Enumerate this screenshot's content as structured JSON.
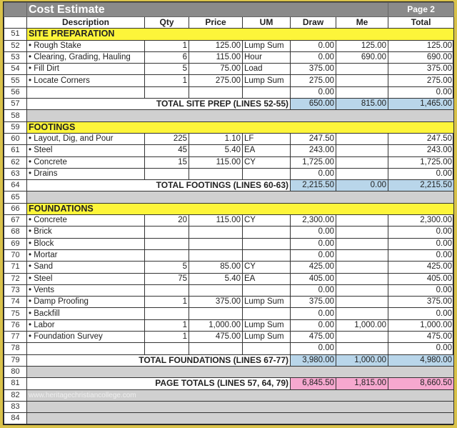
{
  "title": "Cost Estimate",
  "page": "Page 2",
  "columns": [
    "Description",
    "Qty",
    "Price",
    "UM",
    "Draw",
    "Me",
    "Total"
  ],
  "watermark": "www.heritagechristiancollege.com",
  "rows": [
    {
      "n": "51",
      "type": "section",
      "label": "SITE PREPARATION"
    },
    {
      "n": "52",
      "type": "item",
      "desc": "• Rough Stake",
      "qty": "1",
      "price": "125.00",
      "um": "Lump Sum",
      "draw": "0.00",
      "me": "125.00",
      "total": "125.00"
    },
    {
      "n": "53",
      "type": "item",
      "desc": "• Clearing, Grading, Hauling",
      "qty": "6",
      "price": "115.00",
      "um": "Hour",
      "draw": "0.00",
      "me": "690.00",
      "total": "690.00"
    },
    {
      "n": "54",
      "type": "item",
      "desc": "• Fill Dirt",
      "qty": "5",
      "price": "75.00",
      "um": "Load",
      "draw": "375.00",
      "me": "",
      "total": "375.00"
    },
    {
      "n": "55",
      "type": "item",
      "desc": "• Locate Corners",
      "qty": "1",
      "price": "275.00",
      "um": "Lump Sum",
      "draw": "275.00",
      "me": "",
      "total": "275.00"
    },
    {
      "n": "56",
      "type": "item",
      "desc": "",
      "qty": "",
      "price": "",
      "um": "",
      "draw": "0.00",
      "me": "",
      "total": "0.00"
    },
    {
      "n": "57",
      "type": "total",
      "label": "TOTAL SITE PREP (LINES 52-55)",
      "draw": "650.00",
      "me": "815.00",
      "total": "1,465.00",
      "color": "blue"
    },
    {
      "n": "58",
      "type": "gray"
    },
    {
      "n": "59",
      "type": "section",
      "label": "FOOTINGS"
    },
    {
      "n": "60",
      "type": "item",
      "desc": "• Layout, Dig, and Pour",
      "qty": "225",
      "price": "1.10",
      "um": "LF",
      "draw": "247.50",
      "me": "",
      "total": "247.50"
    },
    {
      "n": "61",
      "type": "item",
      "desc": "• Steel",
      "qty": "45",
      "price": "5.40",
      "um": "EA",
      "draw": "243.00",
      "me": "",
      "total": "243.00"
    },
    {
      "n": "62",
      "type": "item",
      "desc": "• Concrete",
      "qty": "15",
      "price": "115.00",
      "um": "CY",
      "draw": "1,725.00",
      "me": "",
      "total": "1,725.00"
    },
    {
      "n": "63",
      "type": "item",
      "desc": "• Drains",
      "qty": "",
      "price": "",
      "um": "",
      "draw": "0.00",
      "me": "",
      "total": "0.00"
    },
    {
      "n": "64",
      "type": "total",
      "label": "TOTAL FOOTINGS (LINES 60-63)",
      "draw": "2,215.50",
      "me": "0.00",
      "total": "2,215.50",
      "color": "blue"
    },
    {
      "n": "65",
      "type": "gray"
    },
    {
      "n": "66",
      "type": "section",
      "label": "FOUNDATIONS"
    },
    {
      "n": "67",
      "type": "item",
      "desc": "• Concrete",
      "qty": "20",
      "price": "115.00",
      "um": "CY",
      "draw": "2,300.00",
      "me": "",
      "total": "2,300.00"
    },
    {
      "n": "68",
      "type": "item",
      "desc": "• Brick",
      "qty": "",
      "price": "",
      "um": "",
      "draw": "0.00",
      "me": "",
      "total": "0.00"
    },
    {
      "n": "69",
      "type": "item",
      "desc": "• Block",
      "qty": "",
      "price": "",
      "um": "",
      "draw": "0.00",
      "me": "",
      "total": "0.00"
    },
    {
      "n": "70",
      "type": "item",
      "desc": "• Mortar",
      "qty": "",
      "price": "",
      "um": "",
      "draw": "0.00",
      "me": "",
      "total": "0.00"
    },
    {
      "n": "71",
      "type": "item",
      "desc": "• Sand",
      "qty": "5",
      "price": "85.00",
      "um": "CY",
      "draw": "425.00",
      "me": "",
      "total": "425.00"
    },
    {
      "n": "72",
      "type": "item",
      "desc": "• Steel",
      "qty": "75",
      "price": "5.40",
      "um": "EA",
      "draw": "405.00",
      "me": "",
      "total": "405.00"
    },
    {
      "n": "73",
      "type": "item",
      "desc": "• Vents",
      "qty": "",
      "price": "",
      "um": "",
      "draw": "0.00",
      "me": "",
      "total": "0.00"
    },
    {
      "n": "74",
      "type": "item",
      "desc": "• Damp  Proofing",
      "qty": "1",
      "price": "375.00",
      "um": "Lump Sum",
      "draw": "375.00",
      "me": "",
      "total": "375.00"
    },
    {
      "n": "75",
      "type": "item",
      "desc": "• Backfill",
      "qty": "",
      "price": "",
      "um": "",
      "draw": "0.00",
      "me": "",
      "total": "0.00"
    },
    {
      "n": "76",
      "type": "item",
      "desc": "• Labor",
      "qty": "1",
      "price": "1,000.00",
      "um": "Lump Sum",
      "draw": "0.00",
      "me": "1,000.00",
      "total": "1,000.00"
    },
    {
      "n": "77",
      "type": "item",
      "desc": "• Foundation Survey",
      "qty": "1",
      "price": "475.00",
      "um": "Lump Sum",
      "draw": "475.00",
      "me": "",
      "total": "475.00"
    },
    {
      "n": "78",
      "type": "item",
      "desc": "",
      "qty": "",
      "price": "",
      "um": "",
      "draw": "0.00",
      "me": "",
      "total": "0.00"
    },
    {
      "n": "79",
      "type": "total",
      "label": "TOTAL FOUNDATIONS (LINES 67-77)",
      "draw": "3,980.00",
      "me": "1,000.00",
      "total": "4,980.00",
      "color": "blue"
    },
    {
      "n": "80",
      "type": "gray"
    },
    {
      "n": "81",
      "type": "total",
      "label": "PAGE TOTALS (LINES 57, 64, 79)",
      "draw": "6,845.50",
      "me": "1,815.00",
      "total": "8,660.50",
      "color": "pink"
    },
    {
      "n": "82",
      "type": "gray",
      "wm": true
    },
    {
      "n": "83",
      "type": "gray"
    },
    {
      "n": "84",
      "type": "gray"
    }
  ]
}
